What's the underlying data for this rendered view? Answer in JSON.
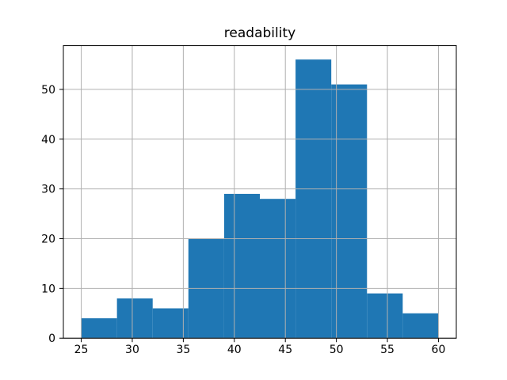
{
  "figure": {
    "background_color": "#ffffff"
  },
  "chart_data": {
    "type": "bar",
    "subtype": "histogram",
    "title": "readability",
    "xlabel": "",
    "ylabel": "",
    "bin_edges": [
      25,
      28.5,
      32,
      35.5,
      39,
      42.5,
      46,
      49.5,
      53,
      56.5,
      60
    ],
    "values": [
      4,
      8,
      6,
      20,
      29,
      28,
      56,
      51,
      9,
      5
    ],
    "xticks": [
      25,
      30,
      35,
      40,
      45,
      50,
      55,
      60
    ],
    "yticks": [
      0,
      10,
      20,
      30,
      40,
      50
    ],
    "xlim": [
      23.25,
      61.75
    ],
    "ylim": [
      0,
      58.8
    ],
    "grid": true,
    "grid_over_bars": true,
    "legend": false,
    "bar_color": "#1f77b4",
    "grid_color": "#b0b0b0",
    "spine_color": "#000000",
    "tick_color": "#000000",
    "tick_label_color": "#000000",
    "title_color": "#000000"
  }
}
